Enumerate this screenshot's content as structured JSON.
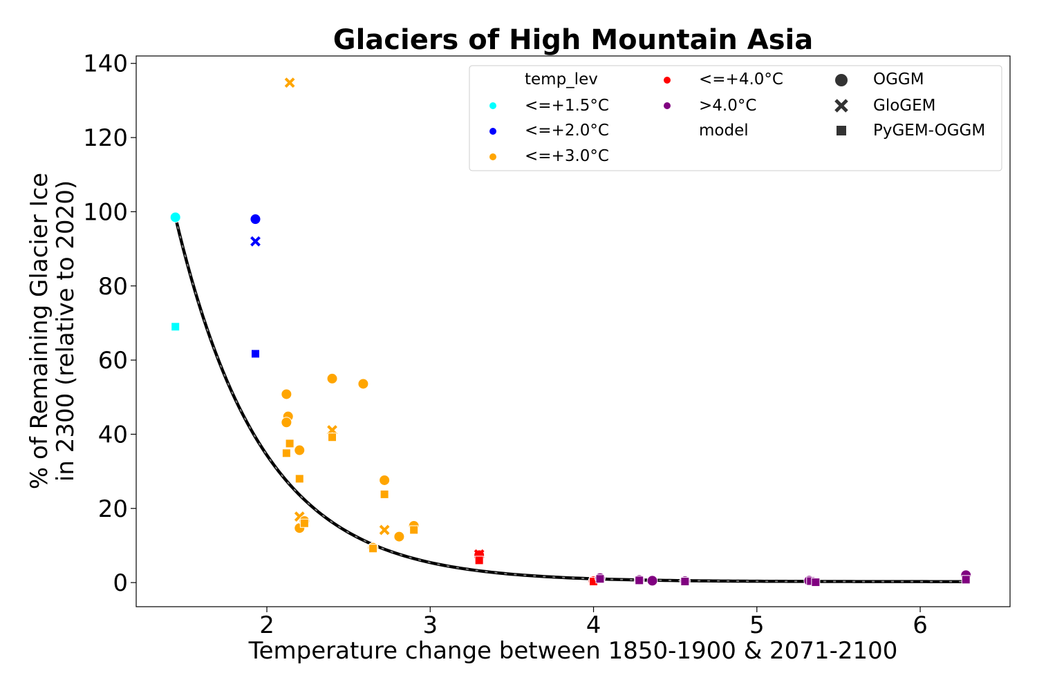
{
  "chart_data": {
    "type": "scatter",
    "title": "Glaciers of High Mountain Asia",
    "xlabel": "Temperature change between 1850-1900 & 2071-2100",
    "ylabel_line1": "% of Remaining Glacier Ice",
    "ylabel_line2": "in 2300 (relative to 2020)",
    "xlim": [
      1.2,
      6.55
    ],
    "ylim": [
      -6.5,
      142
    ],
    "xticks": [
      2,
      3,
      4,
      5,
      6
    ],
    "yticks": [
      0,
      20,
      40,
      60,
      80,
      100,
      120,
      140
    ],
    "grid": false,
    "legend_position": "top-right",
    "legend": {
      "hue_title": "temp_lev",
      "style_title": "model",
      "hue_entries": [
        {
          "label": "<=+1.5°C",
          "color": "#00ffff"
        },
        {
          "label": "<=+2.0°C",
          "color": "#0000ff"
        },
        {
          "label": "<=+3.0°C",
          "color": "#ffa500"
        },
        {
          "label": "<=+4.0°C",
          "color": "#ff0000"
        },
        {
          "label": ">4.0°C",
          "color": "#800080"
        }
      ],
      "style_entries": [
        {
          "label": "OGGM",
          "marker": "circle"
        },
        {
          "label": "GloGEM",
          "marker": "x"
        },
        {
          "label": "PyGEM-OGGM",
          "marker": "square"
        }
      ]
    },
    "series": [
      {
        "level": "<=+1.5°C",
        "color": "#00ffff",
        "points": [
          {
            "x": 1.44,
            "y": 98.5,
            "model": "OGGM"
          },
          {
            "x": 1.44,
            "y": 69.0,
            "model": "PyGEM-OGGM"
          }
        ]
      },
      {
        "level": "<=+2.0°C",
        "color": "#0000ff",
        "points": [
          {
            "x": 1.93,
            "y": 98.0,
            "model": "OGGM"
          },
          {
            "x": 1.93,
            "y": 92.0,
            "model": "GloGEM"
          },
          {
            "x": 1.93,
            "y": 61.7,
            "model": "PyGEM-OGGM"
          }
        ]
      },
      {
        "level": "<=+3.0°C",
        "color": "#ffa500",
        "points": [
          {
            "x": 2.14,
            "y": 134.8,
            "model": "GloGEM"
          },
          {
            "x": 2.12,
            "y": 50.8,
            "model": "OGGM"
          },
          {
            "x": 2.13,
            "y": 44.8,
            "model": "OGGM"
          },
          {
            "x": 2.12,
            "y": 43.2,
            "model": "OGGM"
          },
          {
            "x": 2.14,
            "y": 37.5,
            "model": "PyGEM-OGGM"
          },
          {
            "x": 2.12,
            "y": 34.9,
            "model": "PyGEM-OGGM"
          },
          {
            "x": 2.2,
            "y": 35.7,
            "model": "OGGM"
          },
          {
            "x": 2.2,
            "y": 28.0,
            "model": "PyGEM-OGGM"
          },
          {
            "x": 2.2,
            "y": 17.8,
            "model": "GloGEM"
          },
          {
            "x": 2.2,
            "y": 14.7,
            "model": "OGGM"
          },
          {
            "x": 2.23,
            "y": 16.6,
            "model": "OGGM"
          },
          {
            "x": 2.23,
            "y": 16.0,
            "model": "PyGEM-OGGM"
          },
          {
            "x": 2.4,
            "y": 55.0,
            "model": "OGGM"
          },
          {
            "x": 2.4,
            "y": 41.1,
            "model": "GloGEM"
          },
          {
            "x": 2.4,
            "y": 39.2,
            "model": "PyGEM-OGGM"
          },
          {
            "x": 2.59,
            "y": 53.6,
            "model": "OGGM"
          },
          {
            "x": 2.65,
            "y": 9.4,
            "model": "OGGM"
          },
          {
            "x": 2.65,
            "y": 9.2,
            "model": "PyGEM-OGGM"
          },
          {
            "x": 2.72,
            "y": 27.6,
            "model": "OGGM"
          },
          {
            "x": 2.72,
            "y": 23.8,
            "model": "PyGEM-OGGM"
          },
          {
            "x": 2.72,
            "y": 14.2,
            "model": "GloGEM"
          },
          {
            "x": 2.81,
            "y": 12.4,
            "model": "OGGM"
          },
          {
            "x": 2.9,
            "y": 15.3,
            "model": "OGGM"
          },
          {
            "x": 2.9,
            "y": 14.2,
            "model": "PyGEM-OGGM"
          }
        ]
      },
      {
        "level": "<=+4.0°C",
        "color": "#ff0000",
        "points": [
          {
            "x": 3.3,
            "y": 7.4,
            "model": "OGGM"
          },
          {
            "x": 3.3,
            "y": 7.6,
            "model": "GloGEM"
          },
          {
            "x": 3.3,
            "y": 6.0,
            "model": "PyGEM-OGGM"
          },
          {
            "x": 4.0,
            "y": 0.4,
            "model": "OGGM"
          },
          {
            "x": 4.0,
            "y": 0.3,
            "model": "PyGEM-OGGM"
          }
        ]
      },
      {
        "level": ">4.0°C",
        "color": "#800080",
        "points": [
          {
            "x": 4.04,
            "y": 1.2,
            "model": "OGGM"
          },
          {
            "x": 4.04,
            "y": 1.0,
            "model": "PyGEM-OGGM"
          },
          {
            "x": 4.28,
            "y": 0.7,
            "model": "OGGM"
          },
          {
            "x": 4.28,
            "y": 0.6,
            "model": "PyGEM-OGGM"
          },
          {
            "x": 4.36,
            "y": 0.5,
            "model": "OGGM"
          },
          {
            "x": 4.56,
            "y": 0.4,
            "model": "OGGM"
          },
          {
            "x": 4.56,
            "y": 0.3,
            "model": "PyGEM-OGGM"
          },
          {
            "x": 5.32,
            "y": 0.5,
            "model": "OGGM"
          },
          {
            "x": 5.33,
            "y": 0.4,
            "model": "PyGEM-OGGM"
          },
          {
            "x": 5.36,
            "y": 0.1,
            "model": "PyGEM-OGGM"
          },
          {
            "x": 6.28,
            "y": 2.0,
            "model": "OGGM"
          },
          {
            "x": 6.28,
            "y": 0.8,
            "model": "PyGEM-OGGM"
          }
        ]
      }
    ],
    "fit_curve": {
      "type": "exponential",
      "a": 1495,
      "b": 1.89,
      "c": 0.25,
      "x_range": [
        1.44,
        6.28
      ],
      "color": "#000000",
      "dash_color": "#808080"
    }
  }
}
